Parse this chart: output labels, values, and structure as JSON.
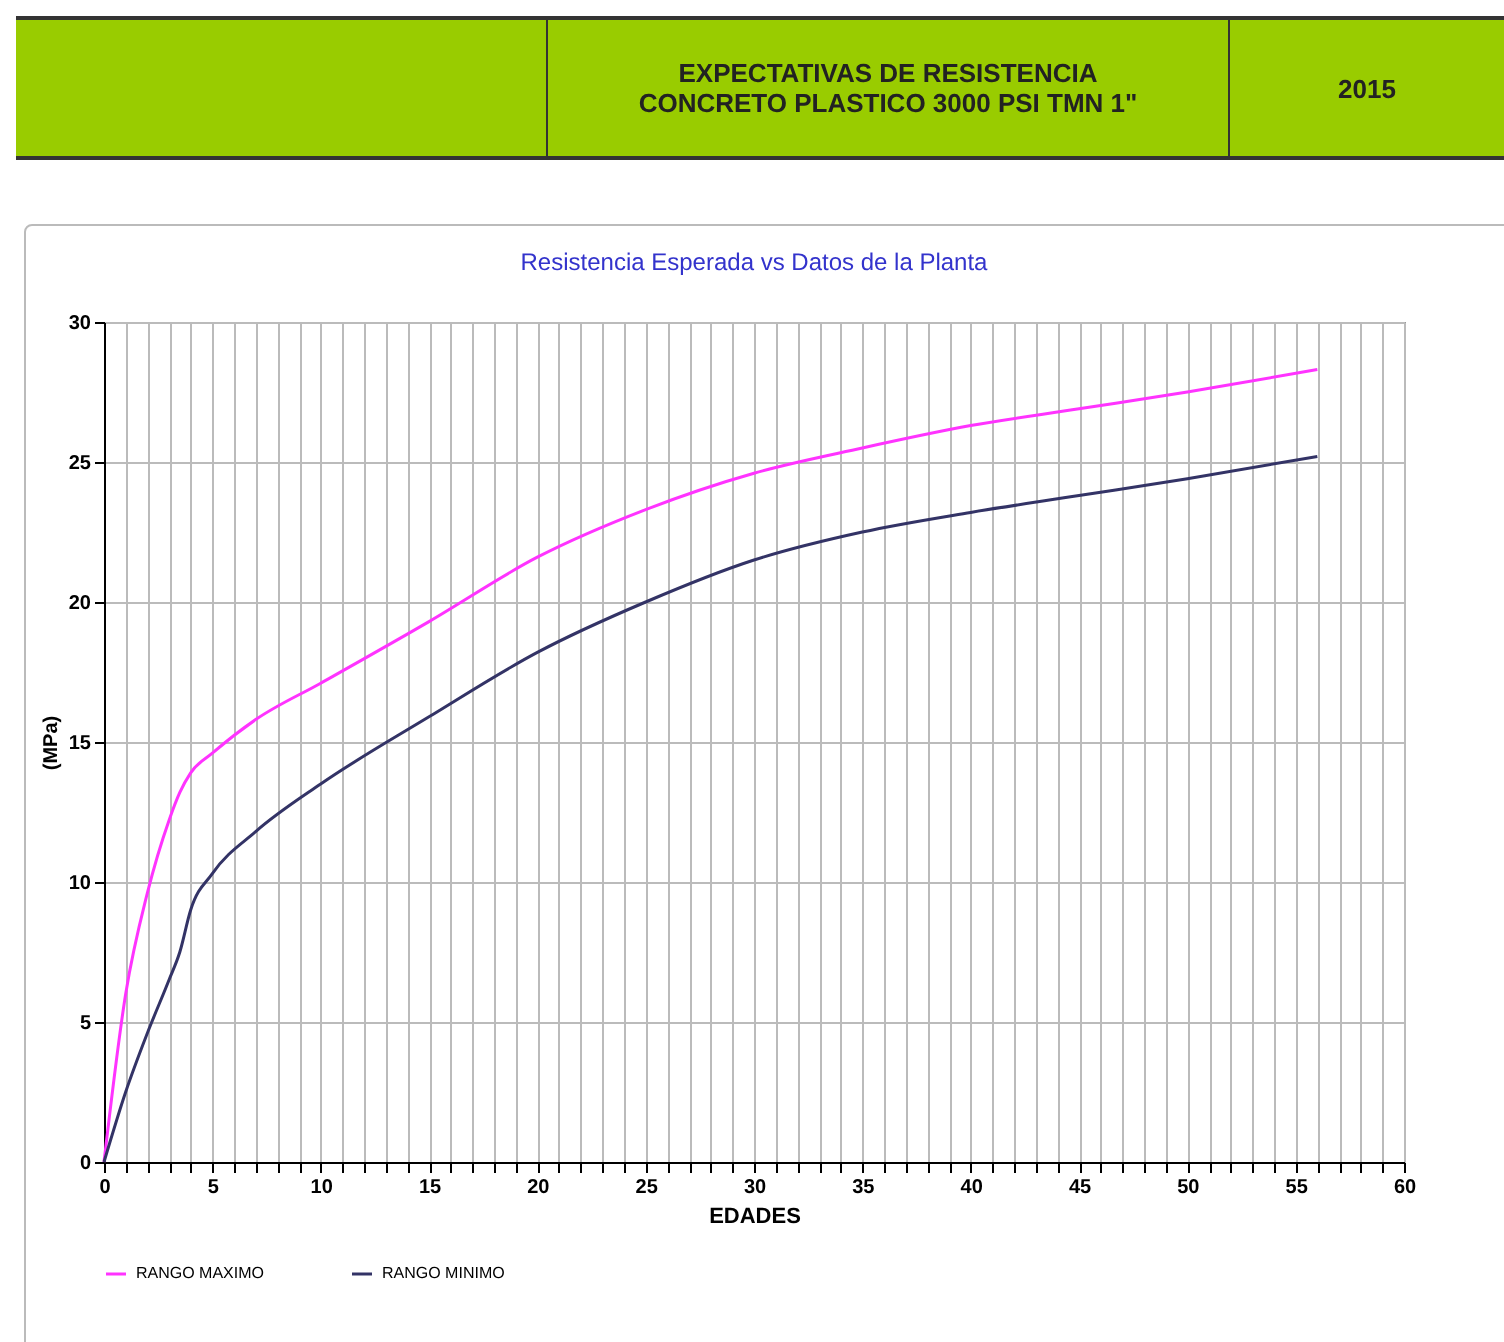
{
  "chart_data": {
    "type": "line",
    "title": "Resistencia Esperada vs Datos de la Planta",
    "xlabel": "EDADES",
    "ylabel": "(MPa)",
    "annotations": [
      "EXPECTATIVAS DE RESISTENCIA\nCONCRETO PLASTICO 3000 PSI TMN 1\"",
      "2015"
    ],
    "x": [
      0,
      1,
      2,
      3,
      3.5,
      4,
      5,
      7,
      10,
      15,
      20,
      25,
      30,
      35,
      40,
      45,
      50,
      56
    ],
    "series": [
      {
        "name": "RANGO MAXIMO",
        "color": "#ff33ff",
        "values": [
          0,
          6,
          9.6,
          12.2,
          13.2,
          13.9,
          14.6,
          15.8,
          17.1,
          19.3,
          21.6,
          23.3,
          24.6,
          25.5,
          26.3,
          26.9,
          27.5,
          28.3
        ]
      },
      {
        "name": "RANGO MINIMO",
        "color": "#333366",
        "values": [
          0,
          2.5,
          4.6,
          6.5,
          7.5,
          9,
          10.3,
          11.8,
          13.5,
          15.9,
          18.2,
          20,
          21.5,
          22.5,
          23.2,
          23.8,
          24.4,
          25.2
        ]
      }
    ],
    "xlim": [
      0,
      60
    ],
    "xticks": [
      0,
      {
        "value": 1,
        "label": null
      },
      {
        "value": 2,
        "label": null
      },
      {
        "value": 3,
        "label": null
      },
      {
        "value": 4,
        "label": null
      },
      5,
      {
        "value": 6,
        "label": null
      },
      {
        "value": 7,
        "label": null
      },
      {
        "value": 8,
        "label": null
      },
      {
        "value": 9,
        "label": null
      },
      10,
      {
        "value": 11,
        "label": null
      },
      {
        "value": 12,
        "label": null
      },
      {
        "value": 13,
        "label": null
      },
      {
        "value": 14,
        "label": null
      },
      15,
      {
        "value": 16,
        "label": null
      },
      {
        "value": 17,
        "label": null
      },
      {
        "value": 18,
        "label": null
      },
      {
        "value": 19,
        "label": null
      },
      20,
      {
        "value": 21,
        "label": null
      },
      {
        "value": 22,
        "label": null
      },
      {
        "value": 23,
        "label": null
      },
      {
        "value": 24,
        "label": null
      },
      25,
      {
        "value": 26,
        "label": null
      },
      {
        "value": 27,
        "label": null
      },
      {
        "value": 28,
        "label": null
      },
      {
        "value": 29,
        "label": null
      },
      30,
      {
        "value": 31,
        "label": null
      },
      {
        "value": 32,
        "label": null
      },
      {
        "value": 33,
        "label": null
      },
      {
        "value": 34,
        "label": null
      },
      35,
      {
        "value": 36,
        "label": null
      },
      {
        "value": 37,
        "label": null
      },
      {
        "value": 38,
        "label": null
      },
      {
        "value": 39,
        "label": null
      },
      40,
      {
        "value": 41,
        "label": null
      },
      {
        "value": 42,
        "label": null
      },
      {
        "value": 43,
        "label": null
      },
      {
        "value": 44,
        "label": null
      },
      45,
      {
        "value": 46,
        "label": null
      },
      {
        "value": 47,
        "label": null
      },
      {
        "value": 48,
        "label": null
      },
      {
        "value": 49,
        "label": null
      },
      50,
      {
        "value": 51,
        "label": null
      },
      {
        "value": 52,
        "label": null
      },
      {
        "value": 53,
        "label": null
      },
      {
        "value": 54,
        "label": null
      },
      55,
      {
        "value": 56,
        "label": null
      },
      {
        "value": 57,
        "label": null
      },
      {
        "value": 58,
        "label": null
      },
      {
        "value": 59,
        "label": null
      },
      60
    ],
    "ylim": [
      0,
      30
    ],
    "yticks": [
      0,
      5,
      10,
      15,
      20,
      25,
      30
    ],
    "grid": true,
    "legend": "bottom",
    "marker": "none",
    "line_style": "solid"
  }
}
